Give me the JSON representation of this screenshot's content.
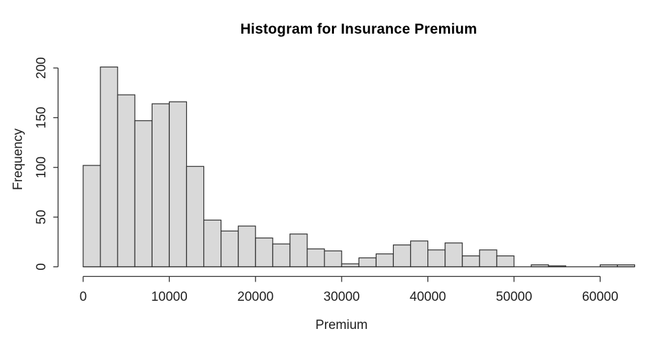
{
  "chart_data": {
    "type": "bar",
    "subtype": "histogram",
    "title": "Histogram for Insurance Premium",
    "xlabel": "Premium",
    "ylabel": "Frequency",
    "bin_start": 0,
    "bin_width": 2000,
    "values": [
      102,
      201,
      173,
      147,
      164,
      166,
      101,
      47,
      36,
      41,
      29,
      23,
      33,
      18,
      16,
      3,
      9,
      13,
      22,
      26,
      17,
      24,
      11,
      17,
      11,
      0,
      2,
      1,
      0,
      0,
      2,
      2
    ],
    "x_ticks": [
      0,
      10000,
      20000,
      30000,
      40000,
      50000,
      60000
    ],
    "y_ticks": [
      0,
      50,
      100,
      150,
      200
    ],
    "xlim": [
      0,
      64000
    ],
    "ylim": [
      0,
      200
    ],
    "grid": false,
    "legend": "none",
    "colors": {
      "bar_fill": "#d9d9d9",
      "bar_stroke": "#2e2e2e",
      "axis": "#2e2e2e",
      "tick_text": "#1f1f1f",
      "background": "#ffffff"
    }
  }
}
